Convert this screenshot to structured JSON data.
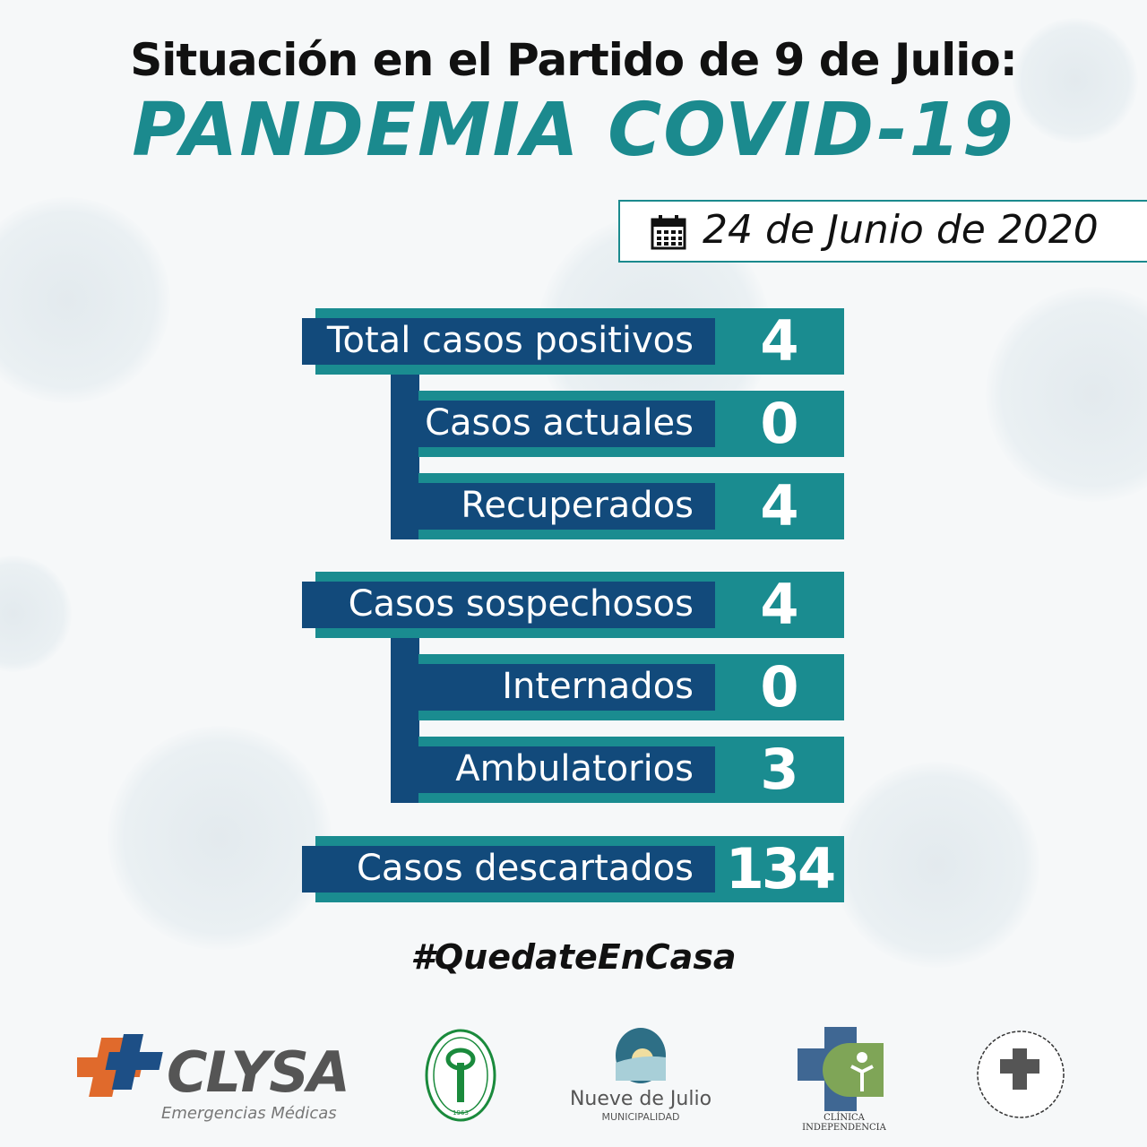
{
  "header": {
    "title": "Situación en el Partido de 9 de Julio:",
    "subtitle": "PANDEMIA COVID-19"
  },
  "date": {
    "icon": "calendar-icon",
    "text": "24 de Junio de 2020"
  },
  "stats": [
    {
      "label": "Total casos positivos",
      "value": "4"
    },
    {
      "label": "Casos actuales",
      "value": "0"
    },
    {
      "label": "Recuperados",
      "value": "4"
    },
    {
      "label": "Casos sospechosos",
      "value": "4"
    },
    {
      "label": "Internados",
      "value": "0"
    },
    {
      "label": "Ambulatorios",
      "value": "3"
    },
    {
      "label": "Casos descartados",
      "value": "134"
    }
  ],
  "hashtag": "#QuedateEnCasa",
  "logos": {
    "clysa": {
      "name": "CLYSA",
      "tagline": "Emergencias Médicas"
    },
    "circulo": {
      "name": "CIRCULO MEDICO DE 9 DE JULIO",
      "year": "1963"
    },
    "municipalidad": {
      "name": "Nueve de Julio",
      "sub": "MUNICIPALIDAD"
    },
    "clinica": {
      "name": "CLÍNICA INDEPENDENCIA"
    }
  },
  "colors": {
    "teal": "#1a8c90",
    "navy": "#124a7b",
    "clysa_orange": "#e06a2c",
    "clysa_blue": "#1d4f86"
  }
}
